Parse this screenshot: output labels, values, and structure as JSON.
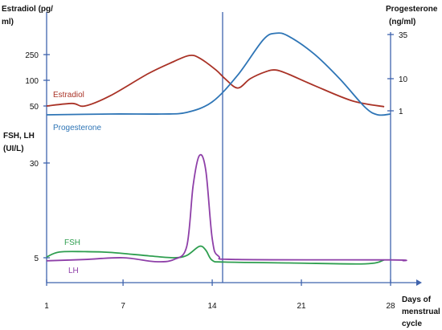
{
  "chart_data": {
    "type": "line",
    "x": {
      "label": [
        "Days of",
        "menstrual",
        "cycle"
      ],
      "ticks": [
        1,
        7,
        14,
        21,
        28
      ],
      "range": [
        1,
        29.5
      ]
    },
    "ovulation_marker_day": 14,
    "top_panel": {
      "left_axis": {
        "label": [
          "Estradiol (pg/",
          "ml)"
        ],
        "ticks": [
          {
            "label": "250",
            "value": 250
          },
          {
            "label": "100",
            "value": 100
          },
          {
            "label": "50",
            "value": 50
          }
        ]
      },
      "right_axis": {
        "label": [
          "Progesterone",
          "(ng/ml)"
        ],
        "ticks": [
          {
            "label": "35",
            "value": 35
          },
          {
            "label": "10",
            "value": 10
          },
          {
            "label": "1",
            "value": 1
          }
        ]
      },
      "series": [
        {
          "name": "Estradiol",
          "color": "#a93226",
          "axis": "left",
          "points": [
            [
              1,
              50
            ],
            [
              3,
              55
            ],
            [
              4,
              50
            ],
            [
              6,
              70
            ],
            [
              9,
              140
            ],
            [
              11,
              210
            ],
            [
              12.2,
              245
            ],
            [
              13,
              230
            ],
            [
              14.3,
              160
            ],
            [
              15,
              110
            ],
            [
              16,
              85
            ],
            [
              17,
              110
            ],
            [
              18.2,
              150
            ],
            [
              19,
              160
            ],
            [
              20,
              135
            ],
            [
              22,
              90
            ],
            [
              25,
              60
            ],
            [
              27.5,
              48
            ]
          ]
        },
        {
          "name": "Progesterone",
          "color": "#2e75b6",
          "axis": "right",
          "points": [
            [
              1,
              0.5
            ],
            [
              6,
              0.6
            ],
            [
              10,
              0.6
            ],
            [
              12,
              0.8
            ],
            [
              14,
              3.5
            ],
            [
              16,
              12
            ],
            [
              18,
              32
            ],
            [
              19,
              36
            ],
            [
              20,
              34
            ],
            [
              22,
              24
            ],
            [
              24,
              10
            ],
            [
              26,
              2
            ],
            [
              27,
              0.5
            ],
            [
              28,
              0.6
            ]
          ]
        }
      ]
    },
    "bottom_panel": {
      "left_axis": {
        "label": [
          "FSH, LH",
          "(UI/L)"
        ],
        "ticks": [
          {
            "label": "30",
            "value": 30
          },
          {
            "label": "5",
            "value": 5
          }
        ]
      },
      "series": [
        {
          "name": "FSH",
          "color": "#2e9e4f",
          "points": [
            [
              1,
              5.2
            ],
            [
              2,
              6.5
            ],
            [
              4,
              6.6
            ],
            [
              6,
              6.4
            ],
            [
              9,
              5.5
            ],
            [
              11,
              5
            ],
            [
              12,
              5.6
            ],
            [
              13,
              8
            ],
            [
              13.5,
              7
            ],
            [
              14,
              4.4
            ],
            [
              15,
              4
            ],
            [
              20,
              3.8
            ],
            [
              26,
              3.6
            ],
            [
              27.5,
              4.5
            ]
          ]
        },
        {
          "name": "LH",
          "color": "#8e3fa8",
          "points": [
            [
              1,
              4.3
            ],
            [
              4,
              4.6
            ],
            [
              7,
              5
            ],
            [
              9.5,
              4.1
            ],
            [
              11,
              4.6
            ],
            [
              12,
              8
            ],
            [
              12.5,
              24
            ],
            [
              13,
              32
            ],
            [
              13.5,
              28
            ],
            [
              14,
              10
            ],
            [
              14.5,
              5.4
            ],
            [
              16,
              4.6
            ],
            [
              28,
              4.5
            ],
            [
              29,
              4.3
            ]
          ]
        }
      ]
    }
  }
}
